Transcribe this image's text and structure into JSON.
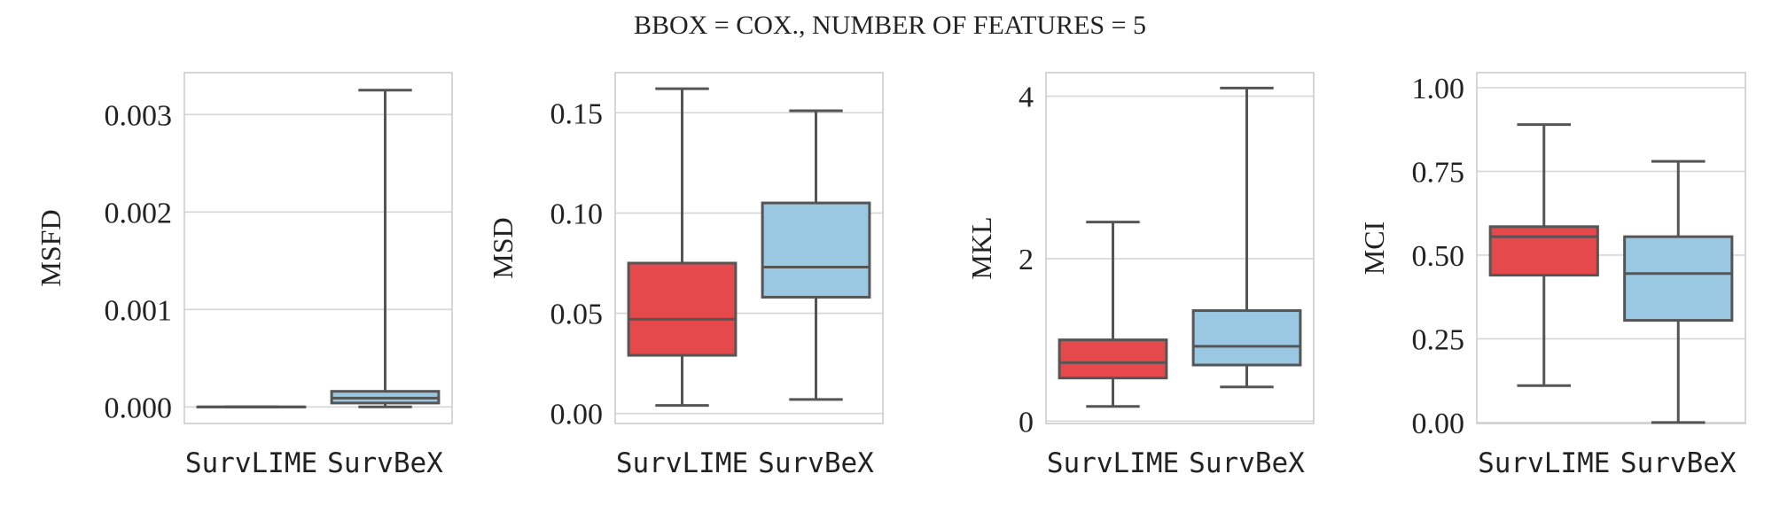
{
  "title": "BBOX = COX., NUMBER OF FEATURES = 5",
  "colors": {
    "survlime": "#e5494b",
    "survbex": "#9ac7e2",
    "line": "#555555",
    "grid": "#d6d6d6",
    "frame": "#cccccc",
    "text": "#222222"
  },
  "chart_data": [
    {
      "type": "box",
      "ylabel": "MSFD",
      "ylim": [
        -0.00017,
        0.00343
      ],
      "yticks": [
        0.0,
        0.001,
        0.002,
        0.003
      ],
      "ytick_labels": [
        "0.000",
        "0.001",
        "0.002",
        "0.003"
      ],
      "grid": true,
      "categories": [
        "SurvLIME",
        "SurvBeX"
      ],
      "boxes": [
        {
          "name": "SurvLIME",
          "color": "survlime",
          "min": 0.0,
          "q1": 0.0,
          "median": 0.0,
          "q3": 0.0,
          "max": 0.0
        },
        {
          "name": "SurvBeX",
          "color": "survbex",
          "min": 0.0,
          "q1": 4e-05,
          "median": 9e-05,
          "q3": 0.00016,
          "max": 0.00325
        }
      ]
    },
    {
      "type": "box",
      "ylabel": "MSD",
      "ylim": [
        -0.005,
        0.17
      ],
      "yticks": [
        0.0,
        0.05,
        0.1,
        0.15
      ],
      "ytick_labels": [
        "0.00",
        "0.05",
        "0.10",
        "0.15"
      ],
      "grid": true,
      "categories": [
        "SurvLIME",
        "SurvBeX"
      ],
      "boxes": [
        {
          "name": "SurvLIME",
          "color": "survlime",
          "min": 0.004,
          "q1": 0.029,
          "median": 0.047,
          "q3": 0.075,
          "max": 0.162
        },
        {
          "name": "SurvBeX",
          "color": "survbex",
          "min": 0.007,
          "q1": 0.058,
          "median": 0.073,
          "q3": 0.105,
          "max": 0.151
        }
      ]
    },
    {
      "type": "box",
      "ylabel": "MKL",
      "ylim": [
        -0.03,
        4.29
      ],
      "yticks": [
        0,
        2,
        4
      ],
      "ytick_labels": [
        "0",
        "2",
        "4"
      ],
      "grid": true,
      "categories": [
        "SurvLIME",
        "SurvBeX"
      ],
      "boxes": [
        {
          "name": "SurvLIME",
          "color": "survlime",
          "min": 0.18,
          "q1": 0.53,
          "median": 0.72,
          "q3": 1.0,
          "max": 2.45
        },
        {
          "name": "SurvBeX",
          "color": "survbex",
          "min": 0.42,
          "q1": 0.69,
          "median": 0.92,
          "q3": 1.36,
          "max": 4.1
        }
      ]
    },
    {
      "type": "box",
      "ylabel": "MCI",
      "ylim": [
        -0.003,
        1.045
      ],
      "yticks": [
        0.0,
        0.25,
        0.5,
        0.75,
        1.0
      ],
      "ytick_labels": [
        "0.00",
        "0.25",
        "0.50",
        "0.75",
        "1.00"
      ],
      "grid": true,
      "categories": [
        "SurvLIME",
        "SurvBeX"
      ],
      "boxes": [
        {
          "name": "SurvLIME",
          "color": "survlime",
          "min": 0.11,
          "q1": 0.44,
          "median": 0.555,
          "q3": 0.585,
          "max": 0.89
        },
        {
          "name": "SurvBeX",
          "color": "survbex",
          "min": 0.0,
          "q1": 0.305,
          "median": 0.445,
          "q3": 0.555,
          "max": 0.78
        }
      ]
    }
  ]
}
